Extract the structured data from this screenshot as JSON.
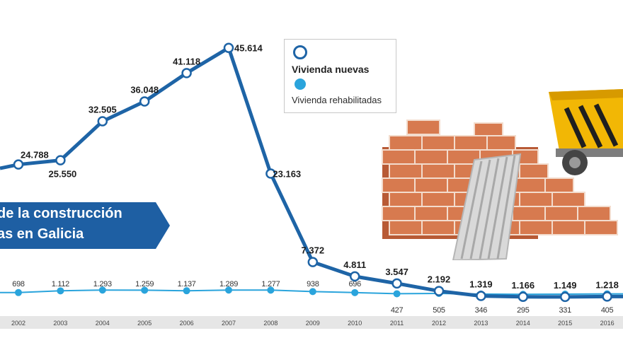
{
  "banner": {
    "line1": "de la construcción",
    "line2": "as en Galicia"
  },
  "legend": {
    "new_label": "Vivienda nuevas",
    "rehab_label": "Vivienda rehabilitadas"
  },
  "colors": {
    "new_line": "#1e64a6",
    "rehab_line": "#2aa4dc",
    "banner": "#1e5fa3",
    "axis_band": "#e6e6e6"
  },
  "illustration": "brick-wall-and-wheelbarrow",
  "chart_data": {
    "type": "line",
    "x": [
      "2002",
      "2003",
      "2004",
      "2005",
      "2006",
      "2007",
      "2008",
      "2009",
      "2010",
      "2011",
      "2012",
      "2013",
      "2014",
      "2015",
      "2016"
    ],
    "series": [
      {
        "name": "Vivienda nuevas",
        "values": [
          24788,
          25550,
          32505,
          36048,
          41118,
          45614,
          23163,
          7372,
          4811,
          3547,
          2192,
          1319,
          1166,
          1149,
          1218
        ],
        "labels": [
          "24.788",
          "25.550",
          "32.505",
          "36.048",
          "41.118",
          "45.614",
          "23.163",
          "7.372",
          "4.811",
          "3.547",
          "2.192",
          "1.319",
          "1.166",
          "1.149",
          "1.218"
        ]
      },
      {
        "name": "Vivienda rehabilitadas",
        "values": [
          698,
          1112,
          1293,
          1259,
          1137,
          1289,
          1277,
          938,
          696,
          427,
          505,
          346,
          295,
          331,
          405
        ],
        "labels": [
          "698",
          "1.112",
          "1.293",
          "1.259",
          "1.137",
          "1.289",
          "1.277",
          "938",
          "696",
          "427",
          "505",
          "346",
          "295",
          "331",
          "405"
        ]
      }
    ]
  }
}
